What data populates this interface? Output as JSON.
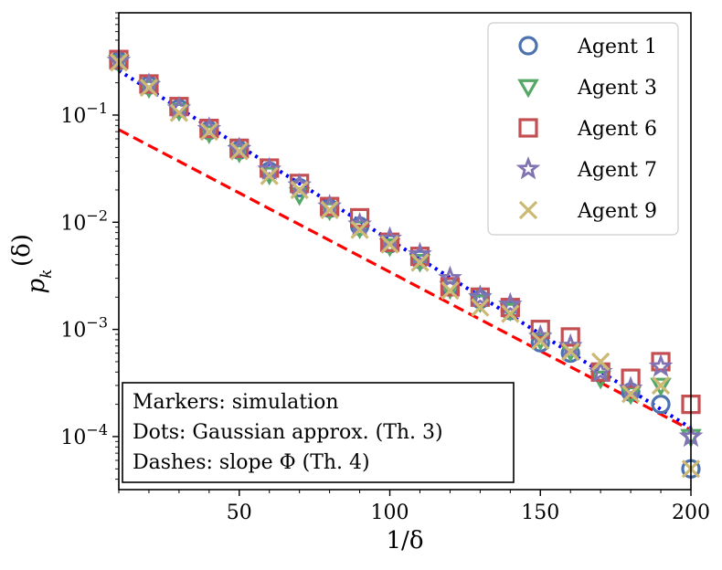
{
  "chart_data": {
    "type": "scatter",
    "title": "",
    "xlabel": "1/δ",
    "ylabel": "p_k^(δ)",
    "ylabel_base": "p",
    "ylabel_sub": "k",
    "ylabel_sup": "(δ)",
    "xscale": "linear",
    "yscale": "log",
    "xlim": [
      10,
      200
    ],
    "ylim": [
      3.2e-05,
      0.9
    ],
    "xticks": [
      50,
      100,
      150,
      200
    ],
    "xtick_labels": [
      "50",
      "100",
      "150",
      "200"
    ],
    "yticks": [
      0.0001,
      0.001,
      0.01,
      0.1
    ],
    "ytick_labels": [
      {
        "base": "10",
        "exp": "−4"
      },
      {
        "base": "10",
        "exp": "−3"
      },
      {
        "base": "10",
        "exp": "−2"
      },
      {
        "base": "10",
        "exp": "−1"
      }
    ],
    "legend_position": "top-right",
    "series": [
      {
        "name": "Agent 1",
        "marker": "circle",
        "color": "#4c72b0",
        "x": [
          10,
          20,
          30,
          40,
          50,
          60,
          70,
          80,
          90,
          100,
          110,
          120,
          130,
          140,
          150,
          160,
          170,
          180,
          190,
          200
        ],
        "y": [
          0.32,
          0.19,
          0.115,
          0.072,
          0.047,
          0.03,
          0.021,
          0.0135,
          0.0092,
          0.0063,
          0.0045,
          0.0025,
          0.0019,
          0.0015,
          0.00075,
          0.0006,
          0.0004,
          0.00026,
          0.0002,
          5e-05
        ]
      },
      {
        "name": "Agent 3",
        "marker": "triangle-down",
        "color": "#55a868",
        "x": [
          10,
          20,
          30,
          40,
          50,
          60,
          70,
          80,
          90,
          100,
          110,
          120,
          130,
          140,
          150,
          160,
          170,
          180,
          190,
          200
        ],
        "y": [
          0.31,
          0.18,
          0.11,
          0.068,
          0.045,
          0.028,
          0.018,
          0.013,
          0.0088,
          0.006,
          0.0043,
          0.0024,
          0.0018,
          0.0015,
          0.0008,
          0.00063,
          0.00035,
          0.00025,
          0.0003,
          0.0001
        ]
      },
      {
        "name": "Agent 6",
        "marker": "square",
        "color": "#c44e52",
        "x": [
          10,
          20,
          30,
          40,
          50,
          60,
          70,
          80,
          90,
          100,
          110,
          120,
          130,
          140,
          150,
          160,
          170,
          180,
          190,
          200
        ],
        "y": [
          0.33,
          0.195,
          0.12,
          0.075,
          0.049,
          0.032,
          0.023,
          0.014,
          0.011,
          0.0065,
          0.0048,
          0.0025,
          0.002,
          0.0016,
          0.001,
          0.00085,
          0.0004,
          0.00035,
          0.0005,
          0.0002
        ]
      },
      {
        "name": "Agent 7",
        "marker": "star",
        "color": "#8172b2",
        "x": [
          10,
          20,
          30,
          40,
          50,
          60,
          70,
          80,
          90,
          100,
          110,
          120,
          130,
          140,
          150,
          160,
          170,
          180,
          190,
          200
        ],
        "y": [
          0.32,
          0.19,
          0.115,
          0.074,
          0.048,
          0.031,
          0.022,
          0.014,
          0.0095,
          0.007,
          0.005,
          0.003,
          0.002,
          0.0017,
          0.00085,
          0.0007,
          0.0004,
          0.00028,
          0.00045,
          0.0001
        ]
      },
      {
        "name": "Agent 9",
        "marker": "x",
        "color": "#ccb974",
        "x": [
          10,
          20,
          30,
          40,
          50,
          60,
          70,
          80,
          90,
          100,
          110,
          120,
          130,
          140,
          150,
          160,
          170,
          180,
          190,
          200
        ],
        "y": [
          0.31,
          0.18,
          0.105,
          0.07,
          0.046,
          0.027,
          0.02,
          0.013,
          0.0085,
          0.0062,
          0.0042,
          0.0023,
          0.0016,
          0.0014,
          0.00078,
          0.00062,
          0.0005,
          0.00025,
          0.0003,
          5e-05
        ]
      }
    ],
    "lines": [
      {
        "name": "Gaussian approx. (Th. 3)",
        "style": "dotted",
        "color": "#0000ff",
        "x": [
          10,
          200
        ],
        "y": [
          0.26,
          0.00012
        ]
      },
      {
        "name": "slope Φ (Th. 4)",
        "style": "dashed",
        "color": "#ff0000",
        "x": [
          10,
          200
        ],
        "y": [
          0.073,
          0.000115
        ]
      }
    ],
    "annotation": {
      "position": "bottom-left",
      "lines": [
        "Markers: simulation",
        "Dots: Gaussian approx. (Th. 3)",
        "Dashes: slope Φ (Th. 4)"
      ]
    }
  }
}
